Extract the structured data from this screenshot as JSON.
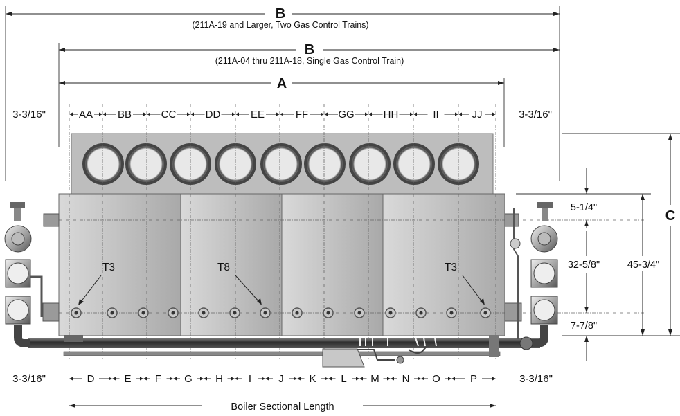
{
  "dimensions": {
    "b_two_trains": {
      "letter": "B",
      "note": "(211A-19 and Larger, Two Gas Control Trains)"
    },
    "b_single_train": {
      "letter": "B",
      "note": "(211A-04 thru 211A-18, Single Gas Control Train)"
    },
    "a_overall": {
      "letter": "A"
    },
    "c_height": {
      "letter": "C"
    },
    "left_offset_top": "3-3/16\"",
    "right_offset_top": "3-3/16\"",
    "left_offset_bottom": "3-3/16\"",
    "right_offset_bottom": "3-3/16\"",
    "top_spacings": [
      "AA",
      "BB",
      "CC",
      "DD",
      "EE",
      "FF",
      "GG",
      "HH",
      "II",
      "JJ"
    ],
    "bottom_spacings": [
      "D",
      "E",
      "F",
      "G",
      "H",
      "I",
      "J",
      "K",
      "L",
      "M",
      "N",
      "O",
      "P"
    ],
    "sectional_length": "Boiler Sectional Length",
    "height_top_offset": "5-1/4\"",
    "height_mid": "32-5/8\"",
    "height_bottom_offset": "7-7/8\"",
    "height_total": "45-3/4\""
  },
  "tappings": [
    {
      "label": "T3"
    },
    {
      "label": "T8"
    },
    {
      "label": "T3"
    }
  ],
  "colors": {
    "panel_light": "#e6e6e6",
    "panel_dark": "#9c9c9c",
    "flue_ring": "#555555",
    "pipe_dark": "#3a3a3a",
    "line": "#222222"
  }
}
